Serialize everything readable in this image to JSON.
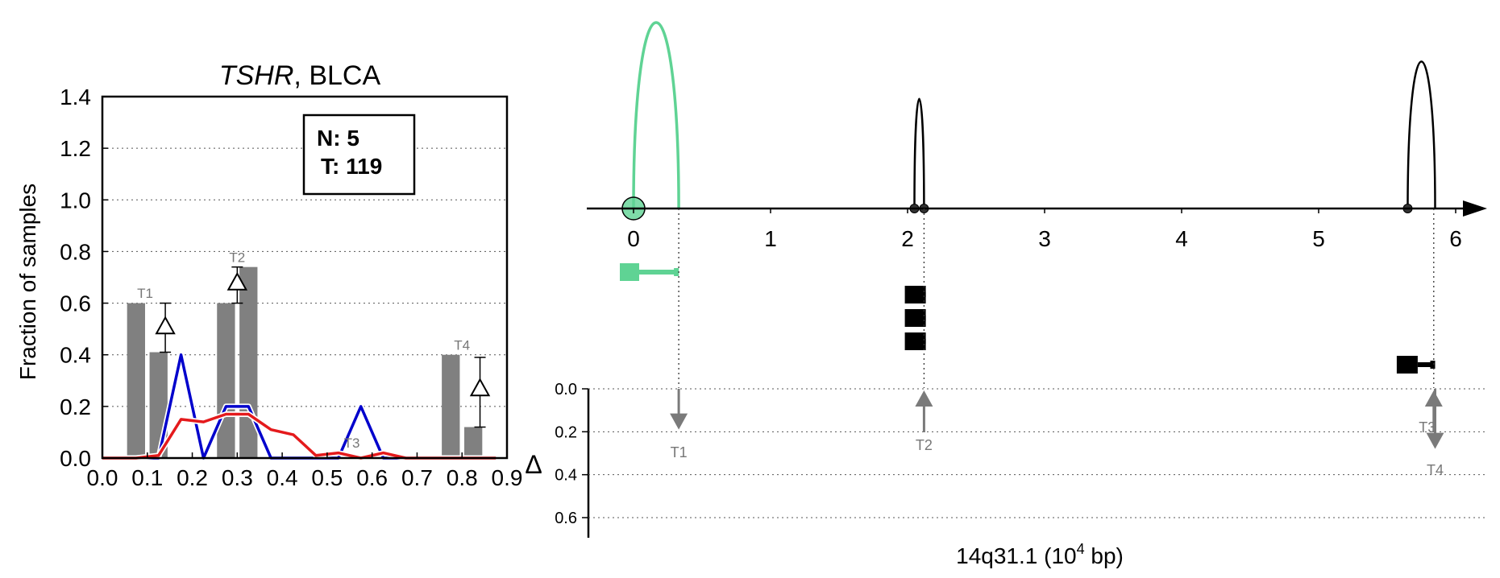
{
  "left_chart": {
    "title_gene": "TSHR",
    "title_rest": ", BLCA",
    "ylabel": "Fraction of samples",
    "xlabel_symbol": "Δ",
    "legend": {
      "n_label": "N: 5",
      "t_label": "T: 119"
    },
    "colors": {
      "bar": "#808080",
      "normal": "#0000cc",
      "tumor": "#e41a1c"
    }
  },
  "right_panel": {
    "xlabel_main": "14q31.1 (10",
    "xlabel_exp": "4",
    "xlabel_tail": " bp)",
    "colors": {
      "highlight": "#5fd394",
      "other": "#000000",
      "arrow": "#7a7a7a"
    }
  },
  "chart_data": [
    {
      "type": "bar",
      "title": "TSHR, BLCA",
      "ylabel": "Fraction of samples",
      "xlabel": "Δ",
      "xlim": [
        0.0,
        0.9
      ],
      "ylim": [
        0.0,
        1.4
      ],
      "xticks": [
        "0.0",
        "0.1",
        "0.2",
        "0.3",
        "0.4",
        "0.5",
        "0.6",
        "0.7",
        "0.8",
        "0.9"
      ],
      "yticks": [
        "0.0",
        "0.2",
        "0.4",
        "0.6",
        "0.8",
        "1.0",
        "1.2",
        "1.4"
      ],
      "grid": "horizontal dotted",
      "bar_width": 0.04,
      "bars": [
        {
          "x": 0.075,
          "value": 0.6
        },
        {
          "x": 0.125,
          "value": 0.41
        },
        {
          "x": 0.275,
          "value": 0.6
        },
        {
          "x": 0.325,
          "value": 0.74
        },
        {
          "x": 0.775,
          "value": 0.4
        },
        {
          "x": 0.825,
          "value": 0.12
        }
      ],
      "bar_annotations": [
        {
          "label": "T1",
          "x": 0.095,
          "y": 0.62
        },
        {
          "label": "T2",
          "x": 0.3,
          "y": 0.76
        },
        {
          "label": "T3",
          "x": 0.555,
          "y": 0.04
        },
        {
          "label": "T4",
          "x": 0.8,
          "y": 0.42
        }
      ],
      "delta_markers": [
        {
          "x": 0.14,
          "y": 0.51,
          "err_low": 0.41,
          "err_high": 0.6
        },
        {
          "x": 0.3,
          "y": 0.68,
          "err_low": 0.6,
          "err_high": 0.74
        },
        {
          "x": 0.84,
          "y": 0.27,
          "err_low": 0.12,
          "err_high": 0.39
        }
      ],
      "series": [
        {
          "key": "normal",
          "x": [
            0.0,
            0.025,
            0.075,
            0.125,
            0.175,
            0.225,
            0.275,
            0.325,
            0.375,
            0.425,
            0.475,
            0.525,
            0.575,
            0.625,
            0.675,
            0.725,
            0.775,
            0.825,
            0.875
          ],
          "values": [
            0.0,
            0.0,
            0.0,
            0.0,
            0.4,
            0.0,
            0.2,
            0.2,
            0.0,
            0.0,
            0.0,
            0.0,
            0.2,
            0.0,
            0.0,
            0.0,
            0.0,
            0.0,
            0.0
          ]
        },
        {
          "key": "tumor",
          "x": [
            0.0,
            0.025,
            0.075,
            0.125,
            0.175,
            0.225,
            0.275,
            0.325,
            0.375,
            0.425,
            0.475,
            0.525,
            0.575,
            0.625,
            0.675,
            0.725,
            0.775,
            0.825,
            0.875
          ],
          "values": [
            0.0,
            0.0,
            0.0,
            0.01,
            0.15,
            0.14,
            0.17,
            0.17,
            0.11,
            0.09,
            0.01,
            0.02,
            0.0,
            0.02,
            0.0,
            0.0,
            0.0,
            0.0,
            0.0
          ]
        }
      ]
    },
    {
      "type": "diagram",
      "xlabel": "14q31.1 (10^4 bp)",
      "xlim": [
        -0.3,
        6.0
      ],
      "xticks": [
        "0",
        "1",
        "2",
        "3",
        "4",
        "5",
        "6"
      ],
      "arcs": [
        {
          "from": 0.0,
          "to": 0.33,
          "height": 1.0,
          "color": "highlight",
          "marker": "big"
        },
        {
          "from": 2.05,
          "to": 2.12,
          "height": 0.59,
          "color": "other",
          "marker": "small"
        },
        {
          "from": 5.65,
          "to": 5.85,
          "height": 0.79,
          "color": "other",
          "marker": "small"
        }
      ],
      "transcripts": [
        {
          "start": -0.1,
          "end": 0.33,
          "row": 0,
          "color": "highlight",
          "offset_y": 0
        },
        {
          "start": 1.98,
          "end": 2.12,
          "row": 1,
          "color": "other",
          "offset_y": 0
        },
        {
          "start": 1.98,
          "end": 2.12,
          "row": 2,
          "color": "other",
          "offset_y": 0
        },
        {
          "start": 1.98,
          "end": 2.12,
          "row": 3,
          "color": "other",
          "offset_y": 0
        },
        {
          "start": 5.57,
          "end": 5.85,
          "row": 4,
          "color": "other",
          "offset_y": 0
        }
      ],
      "delta_axis": {
        "ticks": [
          "0.0",
          "0.2",
          "0.4",
          "0.6"
        ],
        "ylim": [
          0.0,
          0.6
        ]
      },
      "delta_arrows": [
        {
          "label": "T1",
          "x": 0.33,
          "value": 0.19,
          "direction": "down"
        },
        {
          "label": "T2",
          "x": 2.12,
          "value": 0.15,
          "direction": "up"
        },
        {
          "label": "T3",
          "x": 5.84,
          "value": 0.15,
          "direction": "up"
        },
        {
          "label": "T4",
          "x": 5.85,
          "value": 0.28,
          "direction": "down"
        }
      ]
    }
  ]
}
